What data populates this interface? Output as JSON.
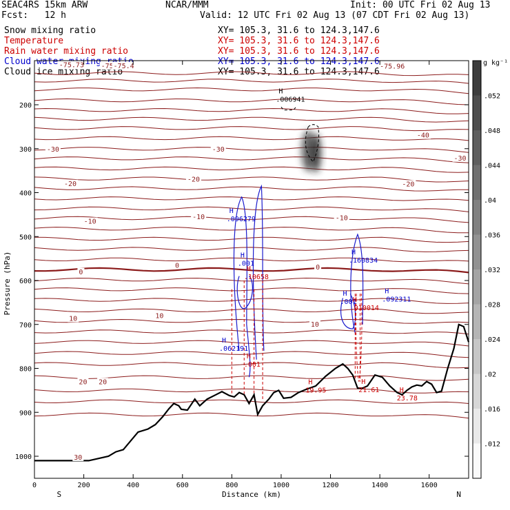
{
  "header": {
    "model": "SEAC4RS 15km ARW",
    "org": "NCAR/MMM",
    "init": "Init: 00 UTC Fri 02 Aug 13",
    "fcst": "Fcst:   12 h",
    "valid": "Valid: 12 UTC Fri 02 Aug 13 (07 CDT Fri 02 Aug 13)"
  },
  "fields": [
    {
      "name": "Snow mixing ratio",
      "xy": "",
      "color": "#000000"
    },
    {
      "name": "Temperature",
      "xy": "XY= 105.3, 31.6 to 124.3,147.6",
      "color": "#cc0000"
    },
    {
      "name": "Rain water mixing ratio",
      "xy": "XY= 105.3, 31.6 to 124.3,147.6",
      "color": "#cc0000"
    },
    {
      "name": "Cloud water mixing ratio",
      "xy": "XY= 105.3, 31.6 to 124.3,147.6",
      "color": "#0000cc"
    },
    {
      "name": "Cloud ice mixing ratio",
      "xy": "XY= 105.3, 31.6 to 124.3,147.6",
      "color": "#000000"
    }
  ],
  "snow_xy": "XY= 105.3, 31.6 to 124.3,147.6",
  "chart_data": {
    "type": "cross-section contour",
    "xlabel": "Distance (km)",
    "ylabel": "Pressure (hPa)",
    "xlim": [
      0,
      1760
    ],
    "ylim": [
      1050,
      100
    ],
    "x_ticks": [
      0,
      200,
      400,
      600,
      800,
      1000,
      1200,
      1400,
      1600
    ],
    "y_ticks": [
      200,
      300,
      400,
      500,
      600,
      700,
      800,
      900,
      1000
    ],
    "x_end_labels": {
      "left": "S",
      "right": "N"
    },
    "colorbar": {
      "unit": "g kg⁻¹",
      "ticks": [
        ".012",
        ".016",
        ".02",
        ".024",
        ".028",
        ".032",
        ".036",
        ".04",
        ".044",
        ".048",
        ".052"
      ]
    },
    "temperature_labels": [
      {
        "x": 270,
        "p": 112,
        "t": "-75.61"
      },
      {
        "x": 100,
        "p": 110,
        "t": "-75.73"
      },
      {
        "x": 320,
        "p": 112,
        "t": "-75.4"
      },
      {
        "x": 1400,
        "p": 113,
        "t": "-75.96"
      },
      {
        "x": 1550,
        "p": 270,
        "t": "-40"
      },
      {
        "x": 50,
        "p": 302,
        "t": "-30"
      },
      {
        "x": 720,
        "p": 302,
        "t": "-30"
      },
      {
        "x": 1700,
        "p": 322,
        "t": "-30"
      },
      {
        "x": 120,
        "p": 380,
        "t": "-20"
      },
      {
        "x": 620,
        "p": 370,
        "t": "-20"
      },
      {
        "x": 1490,
        "p": 381,
        "t": "-20"
      },
      {
        "x": 200,
        "p": 466,
        "t": "-10"
      },
      {
        "x": 640,
        "p": 456,
        "t": "-10"
      },
      {
        "x": 1220,
        "p": 458,
        "t": "-10"
      },
      {
        "x": 180,
        "p": 581,
        "t": "0"
      },
      {
        "x": 570,
        "p": 566,
        "t": "0"
      },
      {
        "x": 1140,
        "p": 570,
        "t": "0"
      },
      {
        "x": 140,
        "p": 687,
        "t": "10"
      },
      {
        "x": 490,
        "p": 681,
        "t": "10"
      },
      {
        "x": 1120,
        "p": 700,
        "t": "10"
      },
      {
        "x": 180,
        "p": 831,
        "t": "20"
      },
      {
        "x": 260,
        "p": 831,
        "t": "20"
      },
      {
        "x": 160,
        "p": 1003,
        "t": "30"
      }
    ],
    "maxima_labels": [
      {
        "x": 990,
        "p": 190,
        "t": ".006941",
        "color": "#000000"
      },
      {
        "x": 790,
        "p": 462,
        "t": ".096279",
        "color": "#0000cc"
      },
      {
        "x": 835,
        "p": 563,
        "t": ".001",
        "color": "#0000cc"
      },
      {
        "x": 860,
        "p": 594,
        "t": ".10658",
        "color": "#cc0000"
      },
      {
        "x": 1285,
        "p": 556,
        "t": ".160834",
        "color": "#0000cc"
      },
      {
        "x": 1250,
        "p": 650,
        "t": ".001",
        "color": "#0000cc"
      },
      {
        "x": 1290,
        "p": 664,
        "t": ".010014",
        "color": "#cc0000"
      },
      {
        "x": 1420,
        "p": 645,
        "t": ".092311",
        "color": "#0000cc"
      },
      {
        "x": 760,
        "p": 757,
        "t": ".062191",
        "color": "#0000cc"
      },
      {
        "x": 860,
        "p": 793,
        "t": ".001",
        "color": "#cc0000"
      },
      {
        "x": 1110,
        "p": 852,
        "t": "19.95",
        "color": "#cc0000"
      },
      {
        "x": 1325,
        "p": 851,
        "t": "21.61",
        "color": "#cc0000"
      },
      {
        "x": 1480,
        "p": 870,
        "t": "23.78",
        "color": "#cc0000"
      }
    ],
    "terrain": [
      [
        0,
        1010
      ],
      [
        220,
        1010
      ],
      [
        300,
        1000
      ],
      [
        330,
        990
      ],
      [
        360,
        985
      ],
      [
        390,
        965
      ],
      [
        420,
        945
      ],
      [
        460,
        938
      ],
      [
        490,
        928
      ],
      [
        520,
        910
      ],
      [
        545,
        892
      ],
      [
        565,
        880
      ],
      [
        585,
        885
      ],
      [
        595,
        893
      ],
      [
        620,
        895
      ],
      [
        650,
        870
      ],
      [
        670,
        885
      ],
      [
        700,
        870
      ],
      [
        735,
        860
      ],
      [
        760,
        853
      ],
      [
        790,
        862
      ],
      [
        810,
        865
      ],
      [
        830,
        855
      ],
      [
        850,
        860
      ],
      [
        870,
        880
      ],
      [
        890,
        860
      ],
      [
        905,
        905
      ],
      [
        925,
        885
      ],
      [
        950,
        870
      ],
      [
        970,
        855
      ],
      [
        990,
        850
      ],
      [
        1010,
        868
      ],
      [
        1040,
        866
      ],
      [
        1070,
        855
      ],
      [
        1100,
        848
      ],
      [
        1140,
        840
      ],
      [
        1180,
        818
      ],
      [
        1220,
        800
      ],
      [
        1250,
        790
      ],
      [
        1270,
        800
      ],
      [
        1290,
        815
      ],
      [
        1310,
        845
      ],
      [
        1330,
        845
      ],
      [
        1350,
        840
      ],
      [
        1380,
        815
      ],
      [
        1410,
        820
      ],
      [
        1440,
        840
      ],
      [
        1470,
        855
      ],
      [
        1490,
        860
      ],
      [
        1510,
        850
      ],
      [
        1530,
        842
      ],
      [
        1550,
        838
      ],
      [
        1570,
        840
      ],
      [
        1590,
        830
      ],
      [
        1610,
        836
      ],
      [
        1630,
        855
      ],
      [
        1650,
        852
      ],
      [
        1675,
        800
      ],
      [
        1700,
        755
      ],
      [
        1720,
        700
      ],
      [
        1740,
        705
      ],
      [
        1760,
        740
      ]
    ]
  }
}
